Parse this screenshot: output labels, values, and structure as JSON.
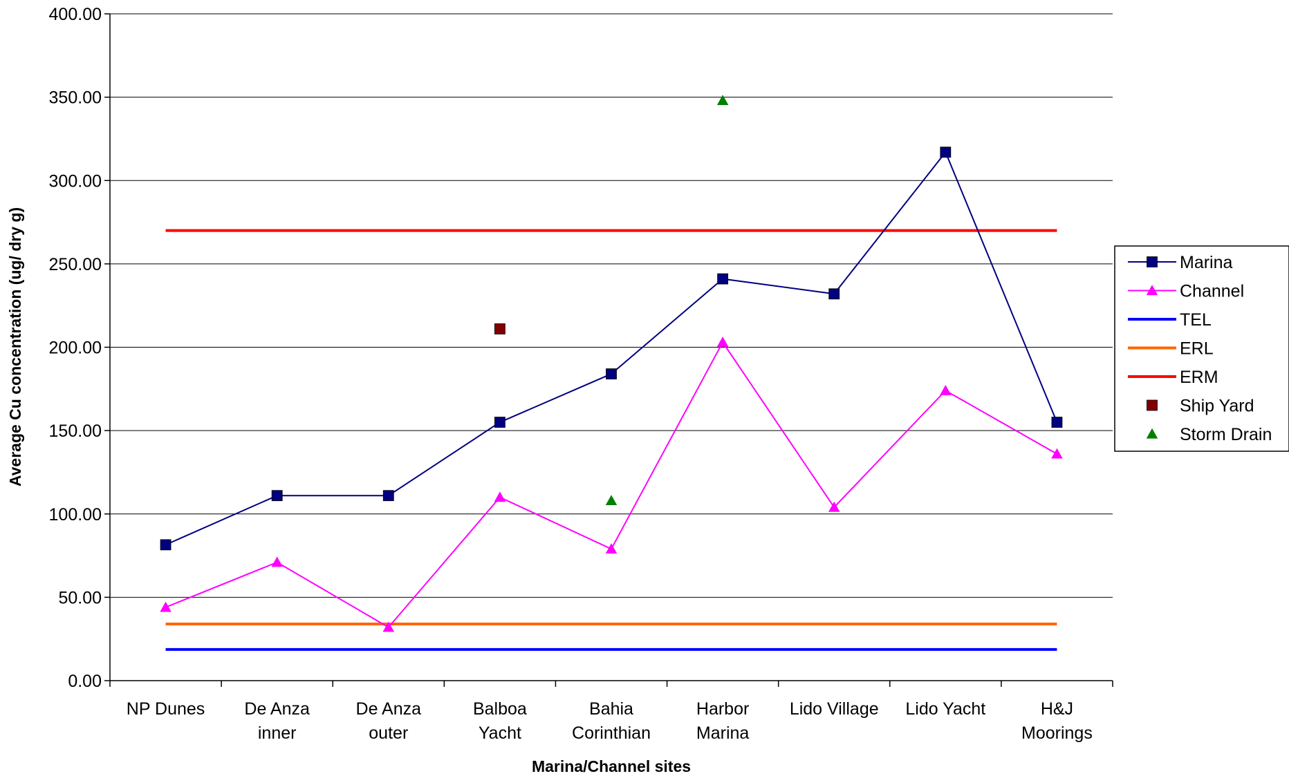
{
  "chart_data": {
    "type": "line",
    "title": "",
    "xlabel": "Marina/Channel sites",
    "ylabel": "Average Cu concentration (ug/ dry g)",
    "ylim": [
      0,
      400
    ],
    "yticks": [
      "0.00",
      "50.00",
      "100.00",
      "150.00",
      "200.00",
      "250.00",
      "300.00",
      "350.00",
      "400.00"
    ],
    "grid": true,
    "legend_position": "right",
    "categories": [
      [
        "NP Dunes"
      ],
      [
        "De Anza",
        "inner"
      ],
      [
        "De Anza",
        "outer"
      ],
      [
        "Balboa",
        "Yacht"
      ],
      [
        "Bahia",
        "Corinthian"
      ],
      [
        "Harbor",
        "Marina"
      ],
      [
        "Lido Village"
      ],
      [
        "Lido Yacht"
      ],
      [
        "H&J",
        "Moorings"
      ]
    ],
    "series": [
      {
        "name": "Marina",
        "kind": "line-marker",
        "marker": "square",
        "color": "#000080",
        "values": [
          81.5,
          111,
          111,
          155,
          184,
          241,
          232,
          317,
          155
        ]
      },
      {
        "name": "Channel",
        "kind": "line-marker",
        "marker": "triangle",
        "color": "#ff00ff",
        "values": [
          44,
          71,
          32,
          110,
          79,
          203,
          104,
          174,
          136
        ]
      },
      {
        "name": "TEL",
        "kind": "line",
        "color": "#0000ff",
        "values": [
          18.7,
          18.7,
          18.7,
          18.7,
          18.7,
          18.7,
          18.7,
          18.7,
          18.7
        ]
      },
      {
        "name": "ERL",
        "kind": "line",
        "color": "#ff6600",
        "values": [
          34,
          34,
          34,
          34,
          34,
          34,
          34,
          34,
          34
        ]
      },
      {
        "name": "ERM",
        "kind": "line",
        "color": "#ff0000",
        "values": [
          270,
          270,
          270,
          270,
          270,
          270,
          270,
          270,
          270
        ]
      },
      {
        "name": "Ship Yard",
        "kind": "marker",
        "marker": "square",
        "color": "#800000",
        "values": [
          null,
          null,
          null,
          211,
          null,
          null,
          null,
          null,
          null
        ]
      },
      {
        "name": "Storm Drain",
        "kind": "marker",
        "marker": "triangle",
        "color": "#008000",
        "values": [
          null,
          null,
          null,
          null,
          108,
          348,
          null,
          null,
          null
        ]
      }
    ]
  }
}
